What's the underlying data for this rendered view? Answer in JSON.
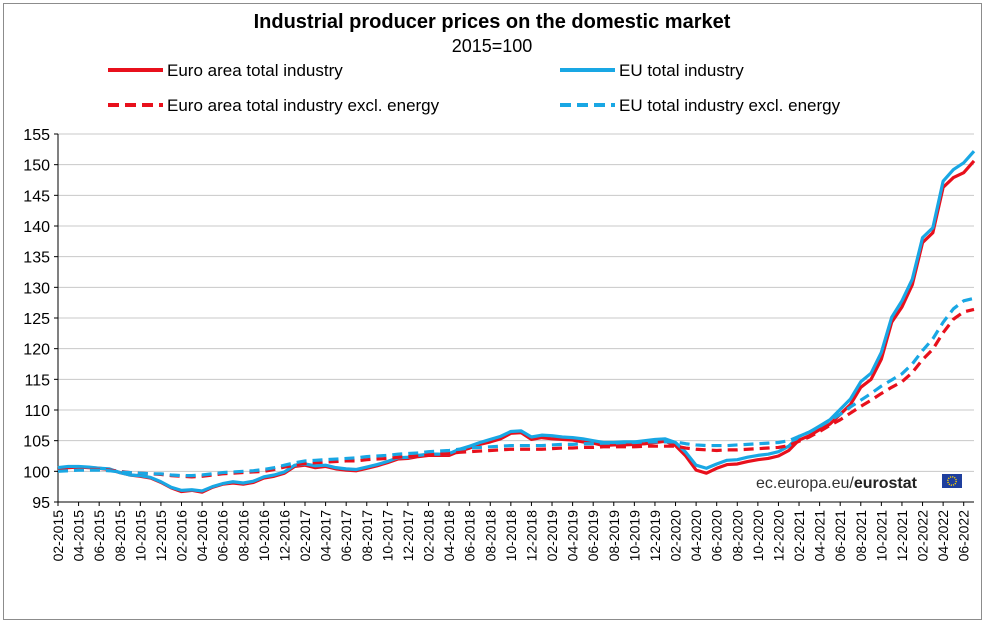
{
  "chart_data": {
    "type": "line",
    "title": "Industrial producer prices on the domestic market",
    "subtitle": "2015=100",
    "source": {
      "prefix": "ec.europa.eu/",
      "brand": "eurostat"
    },
    "ylim": [
      95,
      155
    ],
    "yticks": [
      95,
      100,
      105,
      110,
      115,
      120,
      125,
      130,
      135,
      140,
      145,
      150,
      155
    ],
    "grid": true,
    "legend_position": "top",
    "x_start": "02-2015",
    "x_labels": [
      "02-2015",
      "04-2015",
      "06-2015",
      "08-2015",
      "10-2015",
      "12-2015",
      "02-2016",
      "04-2016",
      "06-2016",
      "08-2016",
      "10-2016",
      "12-2016",
      "02-2017",
      "04-2017",
      "06-2017",
      "08-2017",
      "10-2017",
      "12-2017",
      "02-2018",
      "04-2018",
      "06-2018",
      "08-2018",
      "10-2018",
      "12-2018",
      "02-2019",
      "04-2019",
      "06-2019",
      "08-2019",
      "10-2019",
      "12-2019",
      "02-2020",
      "04-2020",
      "06-2020",
      "08-2020",
      "10-2020",
      "12-2020",
      "02-2021",
      "04-2021",
      "06-2021",
      "08-2021",
      "10-2021",
      "12-2021",
      "02-2022",
      "04-2022",
      "06-2022"
    ],
    "series": [
      {
        "name": "Euro area total industry",
        "color": "#e8101c",
        "dash": "solid",
        "values": [
          100.5,
          100.6,
          100.7,
          100.6,
          100.5,
          100.3,
          99.8,
          99.4,
          99.2,
          98.9,
          98.2,
          97.3,
          96.7,
          96.9,
          96.6,
          97.4,
          97.9,
          98.1,
          97.9,
          98.2,
          98.9,
          99.2,
          99.7,
          100.8,
          101.0,
          100.6,
          100.8,
          100.4,
          100.2,
          100.1,
          100.5,
          100.9,
          101.4,
          102.0,
          102.1,
          102.4,
          102.6,
          102.6,
          102.6,
          103.3,
          103.8,
          104.4,
          104.8,
          105.3,
          106.2,
          106.3,
          105.2,
          105.5,
          105.3,
          105.2,
          105.1,
          104.8,
          104.6,
          104.2,
          104.3,
          104.3,
          104.4,
          104.5,
          104.7,
          104.9,
          104.2,
          102.5,
          100.2,
          99.7,
          100.5,
          101.1,
          101.2,
          101.6,
          101.9,
          102.1,
          102.5,
          103.4,
          105.1,
          105.8,
          106.8,
          107.7,
          109.3,
          110.9,
          113.7,
          115.0,
          118.3,
          124.3,
          126.8,
          130.4,
          137.3,
          138.9,
          146.3,
          147.9,
          148.7,
          150.6
        ]
      },
      {
        "name": "EU total industry",
        "color": "#19a7e4",
        "dash": "solid",
        "values": [
          100.6,
          100.8,
          100.8,
          100.7,
          100.5,
          100.4,
          99.8,
          99.4,
          99.3,
          99.0,
          98.3,
          97.4,
          96.9,
          97.0,
          96.8,
          97.5,
          98.0,
          98.3,
          98.1,
          98.4,
          99.1,
          99.4,
          99.9,
          101.0,
          101.2,
          100.9,
          101.0,
          100.6,
          100.4,
          100.3,
          100.7,
          101.1,
          101.6,
          102.2,
          102.3,
          102.6,
          102.8,
          102.8,
          102.9,
          103.6,
          104.1,
          104.7,
          105.2,
          105.7,
          106.5,
          106.6,
          105.6,
          105.9,
          105.8,
          105.6,
          105.5,
          105.3,
          105.0,
          104.7,
          104.7,
          104.8,
          104.8,
          105.0,
          105.2,
          105.3,
          104.7,
          103.1,
          101.0,
          100.5,
          101.2,
          101.8,
          101.9,
          102.3,
          102.6,
          102.8,
          103.2,
          104.1,
          105.7,
          106.4,
          107.4,
          108.4,
          110.1,
          111.8,
          114.6,
          116.0,
          119.4,
          125.1,
          127.8,
          131.3,
          138.1,
          139.7,
          147.3,
          149.2,
          150.3,
          152.2
        ]
      },
      {
        "name": "Euro area total industry excl. energy",
        "color": "#e8101c",
        "dash": "dashed",
        "values": [
          100.1,
          100.2,
          100.3,
          100.3,
          100.3,
          100.2,
          100.0,
          99.8,
          99.7,
          99.6,
          99.5,
          99.3,
          99.2,
          99.1,
          99.2,
          99.4,
          99.6,
          99.7,
          99.8,
          99.9,
          100.0,
          100.3,
          100.7,
          101.0,
          101.3,
          101.4,
          101.5,
          101.6,
          101.7,
          101.7,
          101.9,
          102.0,
          102.1,
          102.3,
          102.4,
          102.5,
          102.7,
          102.8,
          102.9,
          103.1,
          103.2,
          103.3,
          103.4,
          103.5,
          103.6,
          103.6,
          103.6,
          103.6,
          103.7,
          103.8,
          103.8,
          103.9,
          103.9,
          104.0,
          104.0,
          104.0,
          104.0,
          104.1,
          104.1,
          104.1,
          104.1,
          103.8,
          103.6,
          103.5,
          103.4,
          103.5,
          103.5,
          103.6,
          103.7,
          103.8,
          103.9,
          104.2,
          104.9,
          105.6,
          106.5,
          107.5,
          108.4,
          109.5,
          110.6,
          111.6,
          112.7,
          113.7,
          114.6,
          116.1,
          118.2,
          119.9,
          122.6,
          124.8,
          126.0,
          126.4
        ]
      },
      {
        "name": "EU total industry excl. energy",
        "color": "#19a7e4",
        "dash": "dashed",
        "values": [
          100.0,
          100.1,
          100.2,
          100.2,
          100.2,
          100.1,
          99.9,
          99.8,
          99.7,
          99.6,
          99.6,
          99.4,
          99.3,
          99.3,
          99.4,
          99.6,
          99.8,
          99.9,
          100.0,
          100.1,
          100.3,
          100.6,
          101.0,
          101.4,
          101.7,
          101.8,
          101.9,
          102.0,
          102.1,
          102.2,
          102.4,
          102.5,
          102.6,
          102.8,
          102.9,
          103.0,
          103.2,
          103.3,
          103.4,
          103.6,
          103.8,
          103.9,
          104.0,
          104.1,
          104.2,
          104.2,
          104.2,
          104.2,
          104.3,
          104.4,
          104.4,
          104.5,
          104.5,
          104.6,
          104.6,
          104.7,
          104.7,
          104.8,
          104.8,
          104.8,
          104.8,
          104.5,
          104.3,
          104.2,
          104.2,
          104.2,
          104.3,
          104.4,
          104.5,
          104.6,
          104.7,
          105.0,
          105.7,
          106.4,
          107.3,
          108.3,
          109.3,
          110.5,
          111.6,
          112.7,
          113.9,
          114.9,
          115.9,
          117.5,
          119.7,
          121.6,
          124.3,
          126.5,
          127.8,
          128.2
        ]
      }
    ]
  }
}
